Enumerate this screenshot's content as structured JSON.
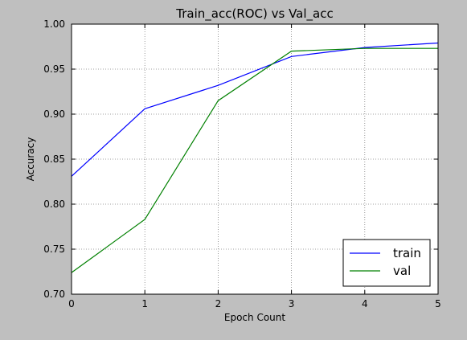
{
  "chart_data": {
    "type": "line",
    "title": "Train_acc(ROC) vs Val_acc",
    "xlabel": "Epoch Count",
    "ylabel": "Accuracy",
    "x": [
      0,
      1,
      2,
      3,
      4,
      5
    ],
    "xlim": [
      0,
      5
    ],
    "ylim": [
      0.7,
      1.0
    ],
    "x_ticks": [
      "0",
      "1",
      "2",
      "3",
      "4",
      "5"
    ],
    "y_ticks": [
      "0.70",
      "0.75",
      "0.80",
      "0.85",
      "0.90",
      "0.95",
      "1.00"
    ],
    "grid": true,
    "legend_position": "lower-right",
    "series": [
      {
        "name": "train",
        "color": "#0000ff",
        "values": [
          0.831,
          0.906,
          0.932,
          0.964,
          0.974,
          0.979
        ]
      },
      {
        "name": "val",
        "color": "#008000",
        "values": [
          0.724,
          0.783,
          0.915,
          0.97,
          0.973,
          0.973
        ]
      }
    ]
  }
}
